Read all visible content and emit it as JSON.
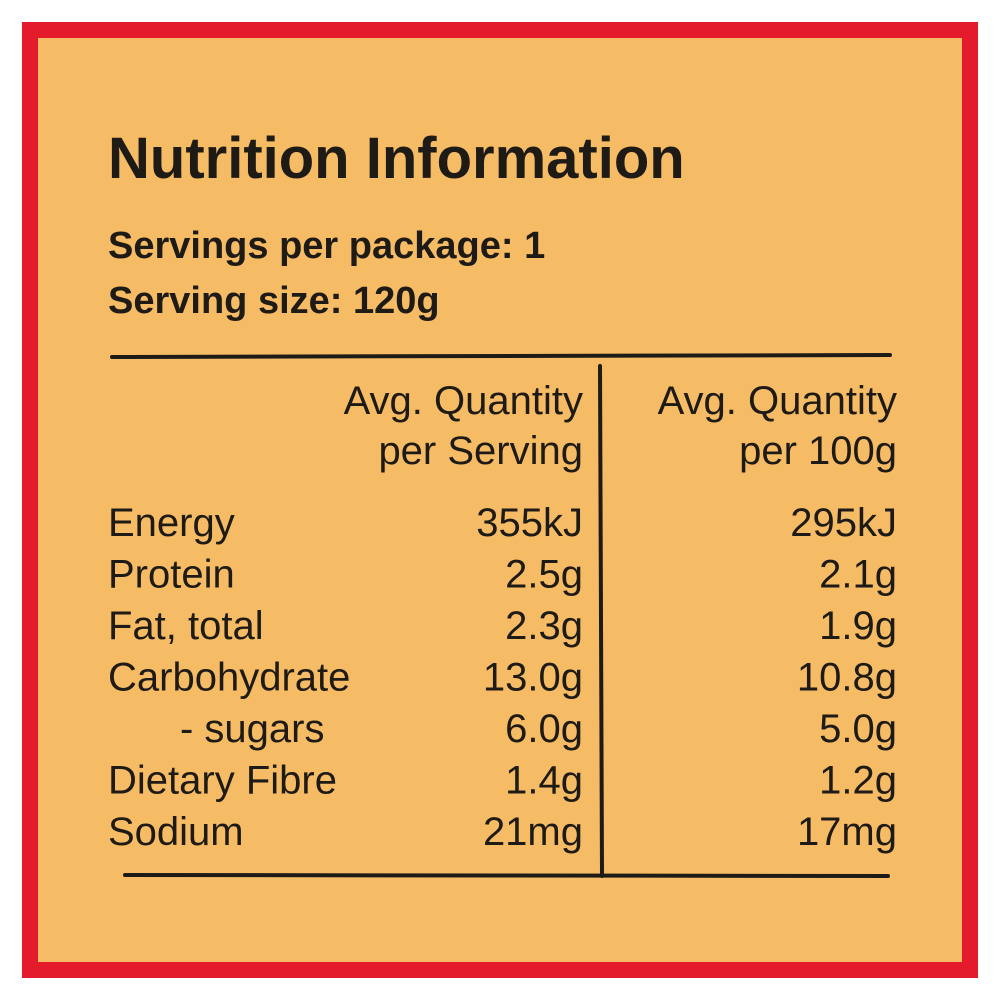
{
  "label": {
    "title": "Nutrition Information",
    "servings_per_package": "Servings per package: 1",
    "serving_size": "Serving size: 120g",
    "table": {
      "headers": [
        [
          "Avg. Quantity",
          "per Serving"
        ],
        [
          "Avg. Quantity",
          "per 100g"
        ]
      ],
      "rows": [
        [
          "Energy",
          "355kJ",
          "295kJ"
        ],
        [
          "Protein",
          "2.5g",
          "2.1g"
        ],
        [
          "Fat, total",
          "2.3g",
          "1.9g"
        ],
        [
          "Carbohydrate",
          "13.0g",
          "10.8g"
        ],
        [
          "- sugars",
          "6.0g",
          "5.0g"
        ],
        [
          "Dietary Fibre",
          "1.4g",
          "1.2g"
        ],
        [
          "Sodium",
          "21mg",
          "17mg"
        ]
      ]
    }
  }
}
